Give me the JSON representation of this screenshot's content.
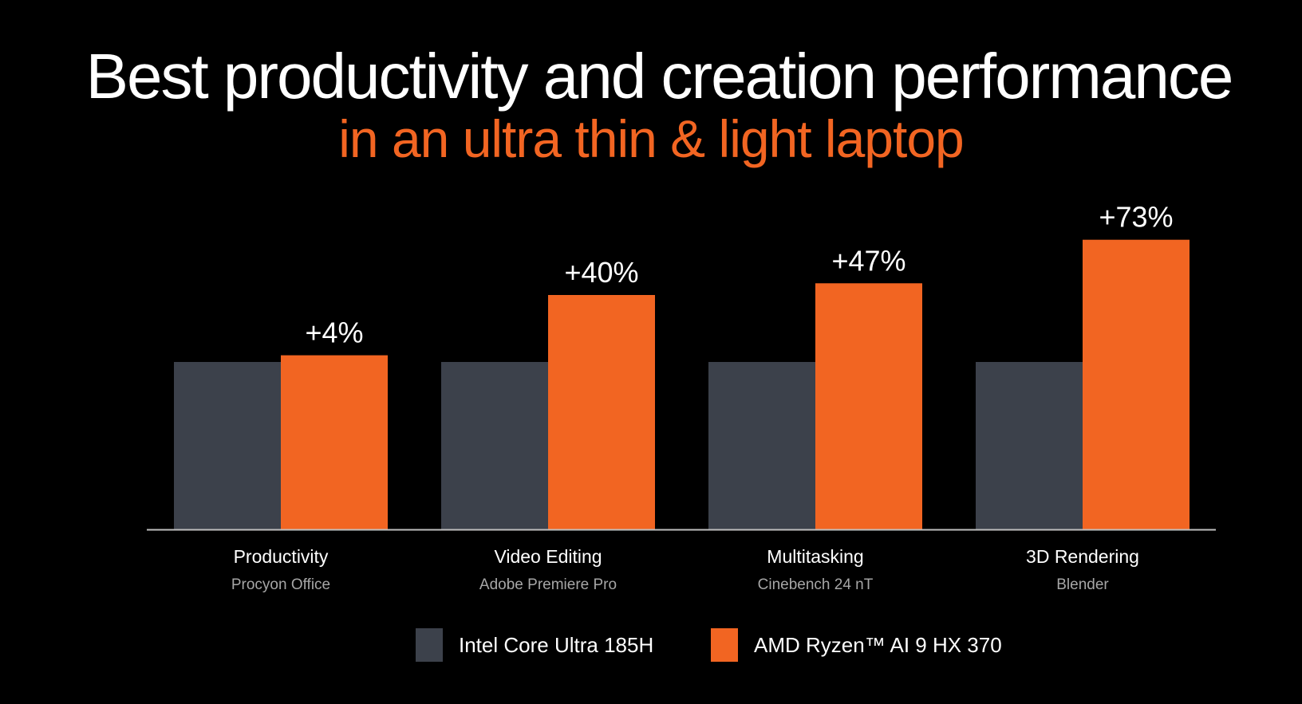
{
  "header": {
    "title": "Best productivity and creation performance",
    "subtitle": "in an ultra thin & light laptop"
  },
  "colors": {
    "background": "#000000",
    "accent": "#f26522",
    "baseline_bar": "#3c414b",
    "axis_line": "#bfbfbf",
    "category_text": "#ffffff",
    "subcategory_text": "#a6a6a6"
  },
  "chart_data": {
    "type": "bar",
    "categories": [
      "Productivity",
      "Video Editing",
      "Multitasking",
      "3D Rendering"
    ],
    "subcategories": [
      "Procyon Office",
      "Adobe Premiere Pro",
      "Cinebench 24 nT",
      "Blender"
    ],
    "series": [
      {
        "name": "Intel Core Ultra 185H",
        "values": [
          1.0,
          1.0,
          1.0,
          1.0
        ],
        "color": "#3c414b"
      },
      {
        "name": "AMD Ryzen™ AI 9 HX 370",
        "values": [
          1.04,
          1.4,
          1.47,
          1.73
        ],
        "color": "#f26522"
      }
    ],
    "data_labels": [
      "+4%",
      "+40%",
      "+47%",
      "+73%"
    ],
    "ylim": [
      0,
      1.8
    ],
    "grid": false,
    "legend_position": "bottom"
  }
}
